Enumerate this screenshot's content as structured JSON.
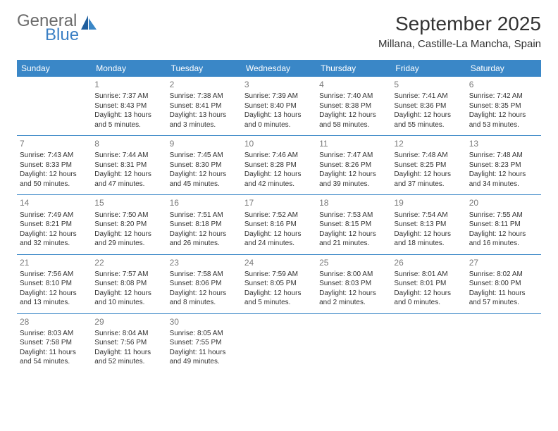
{
  "logo": {
    "text1": "General",
    "text2": "Blue"
  },
  "title": "September 2025",
  "location": "Millana, Castille-La Mancha, Spain",
  "colors": {
    "header_bg": "#3a87c7",
    "header_text": "#ffffff",
    "rule": "#3a87c7",
    "daynum": "#7a7a7a",
    "body_text": "#333333",
    "logo_gray": "#6b6b6b",
    "logo_blue": "#3a7fc4"
  },
  "weekday_labels": [
    "Sunday",
    "Monday",
    "Tuesday",
    "Wednesday",
    "Thursday",
    "Friday",
    "Saturday"
  ],
  "start_offset": 1,
  "days": [
    {
      "n": "1",
      "sunrise": "7:37 AM",
      "sunset": "8:43 PM",
      "daylight": "13 hours and 5 minutes."
    },
    {
      "n": "2",
      "sunrise": "7:38 AM",
      "sunset": "8:41 PM",
      "daylight": "13 hours and 3 minutes."
    },
    {
      "n": "3",
      "sunrise": "7:39 AM",
      "sunset": "8:40 PM",
      "daylight": "13 hours and 0 minutes."
    },
    {
      "n": "4",
      "sunrise": "7:40 AM",
      "sunset": "8:38 PM",
      "daylight": "12 hours and 58 minutes."
    },
    {
      "n": "5",
      "sunrise": "7:41 AM",
      "sunset": "8:36 PM",
      "daylight": "12 hours and 55 minutes."
    },
    {
      "n": "6",
      "sunrise": "7:42 AM",
      "sunset": "8:35 PM",
      "daylight": "12 hours and 53 minutes."
    },
    {
      "n": "7",
      "sunrise": "7:43 AM",
      "sunset": "8:33 PM",
      "daylight": "12 hours and 50 minutes."
    },
    {
      "n": "8",
      "sunrise": "7:44 AM",
      "sunset": "8:31 PM",
      "daylight": "12 hours and 47 minutes."
    },
    {
      "n": "9",
      "sunrise": "7:45 AM",
      "sunset": "8:30 PM",
      "daylight": "12 hours and 45 minutes."
    },
    {
      "n": "10",
      "sunrise": "7:46 AM",
      "sunset": "8:28 PM",
      "daylight": "12 hours and 42 minutes."
    },
    {
      "n": "11",
      "sunrise": "7:47 AM",
      "sunset": "8:26 PM",
      "daylight": "12 hours and 39 minutes."
    },
    {
      "n": "12",
      "sunrise": "7:48 AM",
      "sunset": "8:25 PM",
      "daylight": "12 hours and 37 minutes."
    },
    {
      "n": "13",
      "sunrise": "7:48 AM",
      "sunset": "8:23 PM",
      "daylight": "12 hours and 34 minutes."
    },
    {
      "n": "14",
      "sunrise": "7:49 AM",
      "sunset": "8:21 PM",
      "daylight": "12 hours and 32 minutes."
    },
    {
      "n": "15",
      "sunrise": "7:50 AM",
      "sunset": "8:20 PM",
      "daylight": "12 hours and 29 minutes."
    },
    {
      "n": "16",
      "sunrise": "7:51 AM",
      "sunset": "8:18 PM",
      "daylight": "12 hours and 26 minutes."
    },
    {
      "n": "17",
      "sunrise": "7:52 AM",
      "sunset": "8:16 PM",
      "daylight": "12 hours and 24 minutes."
    },
    {
      "n": "18",
      "sunrise": "7:53 AM",
      "sunset": "8:15 PM",
      "daylight": "12 hours and 21 minutes."
    },
    {
      "n": "19",
      "sunrise": "7:54 AM",
      "sunset": "8:13 PM",
      "daylight": "12 hours and 18 minutes."
    },
    {
      "n": "20",
      "sunrise": "7:55 AM",
      "sunset": "8:11 PM",
      "daylight": "12 hours and 16 minutes."
    },
    {
      "n": "21",
      "sunrise": "7:56 AM",
      "sunset": "8:10 PM",
      "daylight": "12 hours and 13 minutes."
    },
    {
      "n": "22",
      "sunrise": "7:57 AM",
      "sunset": "8:08 PM",
      "daylight": "12 hours and 10 minutes."
    },
    {
      "n": "23",
      "sunrise": "7:58 AM",
      "sunset": "8:06 PM",
      "daylight": "12 hours and 8 minutes."
    },
    {
      "n": "24",
      "sunrise": "7:59 AM",
      "sunset": "8:05 PM",
      "daylight": "12 hours and 5 minutes."
    },
    {
      "n": "25",
      "sunrise": "8:00 AM",
      "sunset": "8:03 PM",
      "daylight": "12 hours and 2 minutes."
    },
    {
      "n": "26",
      "sunrise": "8:01 AM",
      "sunset": "8:01 PM",
      "daylight": "12 hours and 0 minutes."
    },
    {
      "n": "27",
      "sunrise": "8:02 AM",
      "sunset": "8:00 PM",
      "daylight": "11 hours and 57 minutes."
    },
    {
      "n": "28",
      "sunrise": "8:03 AM",
      "sunset": "7:58 PM",
      "daylight": "11 hours and 54 minutes."
    },
    {
      "n": "29",
      "sunrise": "8:04 AM",
      "sunset": "7:56 PM",
      "daylight": "11 hours and 52 minutes."
    },
    {
      "n": "30",
      "sunrise": "8:05 AM",
      "sunset": "7:55 PM",
      "daylight": "11 hours and 49 minutes."
    }
  ],
  "labels": {
    "sunrise": "Sunrise:",
    "sunset": "Sunset:",
    "daylight": "Daylight:"
  }
}
